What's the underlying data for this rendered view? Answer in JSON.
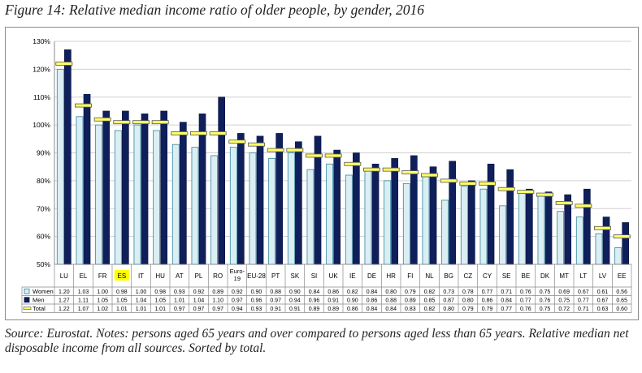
{
  "figure": {
    "title": "Figure 14: Relative median income ratio of older people, by gender, 2016",
    "source": "Source: Eurostat. Notes: persons aged 65 years and over compared to persons aged less than 65 years. Relative median net disposable income from all sources. Sorted by total."
  },
  "colors": {
    "women": "#daeef3",
    "women_stroke": "#31859c",
    "men": "#0f1f5c",
    "total": "#ffff66",
    "grid": "#d0d0d0",
    "highlight": "#ffff00"
  },
  "chart_data": {
    "type": "bar",
    "title": "",
    "xlabel": "",
    "ylabel": "",
    "ylim": [
      0.5,
      1.3
    ],
    "yticks": [
      "50%",
      "60%",
      "70%",
      "80%",
      "90%",
      "100%",
      "110%",
      "120%",
      "130%"
    ],
    "grid": true,
    "highlight_category": "ES",
    "categories": [
      "LU",
      "EL",
      "FR",
      "ES",
      "IT",
      "HU",
      "AT",
      "PL",
      "RO",
      "Euro-19",
      "EU-28",
      "PT",
      "SK",
      "SI",
      "UK",
      "IE",
      "DE",
      "HR",
      "FI",
      "NL",
      "BG",
      "CZ",
      "CY",
      "SE",
      "BE",
      "DK",
      "MT",
      "LT",
      "LV",
      "EE"
    ],
    "category_labels": [
      "LU",
      "EL",
      "FR",
      "ES",
      "IT",
      "HU",
      "AT",
      "PL",
      "RO",
      [
        "Euro-",
        "19"
      ],
      "EU-28",
      "PT",
      "SK",
      "SI",
      "UK",
      "IE",
      "DE",
      "HR",
      "FI",
      "NL",
      "BG",
      "CZ",
      "CY",
      "SE",
      "BE",
      "DK",
      "MT",
      "LT",
      "LV",
      "EE"
    ],
    "series": [
      {
        "name": "Women",
        "mark": "bar",
        "values": [
          1.2,
          1.03,
          1.0,
          0.98,
          1.0,
          0.98,
          0.93,
          0.92,
          0.89,
          0.92,
          0.9,
          0.88,
          0.9,
          0.84,
          0.86,
          0.82,
          0.84,
          0.8,
          0.79,
          0.82,
          0.73,
          0.78,
          0.77,
          0.71,
          0.76,
          0.75,
          0.69,
          0.67,
          0.61,
          0.56
        ]
      },
      {
        "name": "Men",
        "mark": "bar",
        "values": [
          1.27,
          1.11,
          1.05,
          1.05,
          1.04,
          1.05,
          1.01,
          1.04,
          1.1,
          0.97,
          0.96,
          0.97,
          0.94,
          0.96,
          0.91,
          0.9,
          0.86,
          0.88,
          0.89,
          0.85,
          0.87,
          0.8,
          0.86,
          0.84,
          0.77,
          0.76,
          0.75,
          0.77,
          0.67,
          0.65
        ]
      },
      {
        "name": "Total",
        "mark": "dash",
        "values": [
          1.22,
          1.07,
          1.02,
          1.01,
          1.01,
          1.01,
          0.97,
          0.97,
          0.97,
          0.94,
          0.93,
          0.91,
          0.91,
          0.89,
          0.89,
          0.86,
          0.84,
          0.84,
          0.83,
          0.82,
          0.8,
          0.79,
          0.79,
          0.77,
          0.76,
          0.75,
          0.72,
          0.71,
          0.63,
          0.6
        ]
      }
    ],
    "table": {
      "rows": [
        [
          "1.20",
          "1.03",
          "1.00",
          "0.98",
          "1.00",
          "0.98",
          "0.93",
          "0.92",
          "0.89",
          "0.92",
          "0.90",
          "0.88",
          "0.90",
          "0.84",
          "0.86",
          "0.82",
          "0.84",
          "0.80",
          "0.79",
          "0.82",
          "0.73",
          "0.78",
          "0.77",
          "0.71",
          "0.76",
          "0.75",
          "0.69",
          "0.67",
          "0.61",
          "0.56"
        ],
        [
          "1.27",
          "1.11",
          "1.05",
          "1.05",
          "1.04",
          "1.05",
          "1.01",
          "1.04",
          "1.10",
          "0.97",
          "0.96",
          "0.97",
          "0.94",
          "0.96",
          "0.91",
          "0.90",
          "0.86",
          "0.88",
          "0.89",
          "0.85",
          "0.87",
          "0.80",
          "0.86",
          "0.84",
          "0.77",
          "0.76",
          "0.75",
          "0.77",
          "0.67",
          "0.65"
        ],
        [
          "1.22",
          "1.07",
          "1.02",
          "1.01",
          "1.01",
          "1.01",
          "0.97",
          "0.97",
          "0.97",
          "0.94",
          "0.93",
          "0.91",
          "0.91",
          "0.89",
          "0.89",
          "0.86",
          "0.84",
          "0.84",
          "0.83",
          "0.82",
          "0.80",
          "0.79",
          "0.79",
          "0.77",
          "0.76",
          "0.75",
          "0.72",
          "0.71",
          "0.63",
          "0.60"
        ]
      ]
    }
  }
}
